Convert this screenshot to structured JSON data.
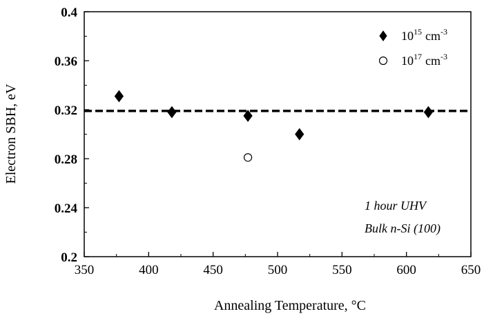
{
  "chart_data": {
    "type": "scatter",
    "title": "",
    "xlabel": "Annealing Temperature, °C",
    "ylabel": "Electron SBH, eV",
    "xlim": [
      350,
      650
    ],
    "ylim": [
      0.2,
      0.4
    ],
    "x_ticks": [
      "350",
      "400",
      "450",
      "500",
      "550",
      "600",
      "650"
    ],
    "y_ticks": [
      "0.2",
      "0.24",
      "0.28",
      "0.32",
      "0.36",
      "0.4"
    ],
    "grid": false,
    "legend_position": "top-right",
    "series": [
      {
        "name": "10^15 cm^-3",
        "marker": "filled-diamond",
        "color": "#000000",
        "points": [
          {
            "x": 377,
            "y": 0.331
          },
          {
            "x": 418,
            "y": 0.318
          },
          {
            "x": 477,
            "y": 0.315
          },
          {
            "x": 517,
            "y": 0.3
          },
          {
            "x": 617,
            "y": 0.318
          }
        ]
      },
      {
        "name": "10^17 cm^-3",
        "marker": "open-circle",
        "color": "#000000",
        "points": [
          {
            "x": 477,
            "y": 0.281
          }
        ]
      }
    ],
    "reference_line": {
      "y": 0.319,
      "style": "dashed",
      "color": "#000000"
    },
    "legend": [
      {
        "base": "10",
        "exp": "15",
        "unit": "cm",
        "unit_exp": "-3"
      },
      {
        "base": "10",
        "exp": "17",
        "unit": "cm",
        "unit_exp": "-3"
      }
    ],
    "annotations": [
      "1 hour UHV",
      "Bulk n-Si (100)"
    ]
  }
}
